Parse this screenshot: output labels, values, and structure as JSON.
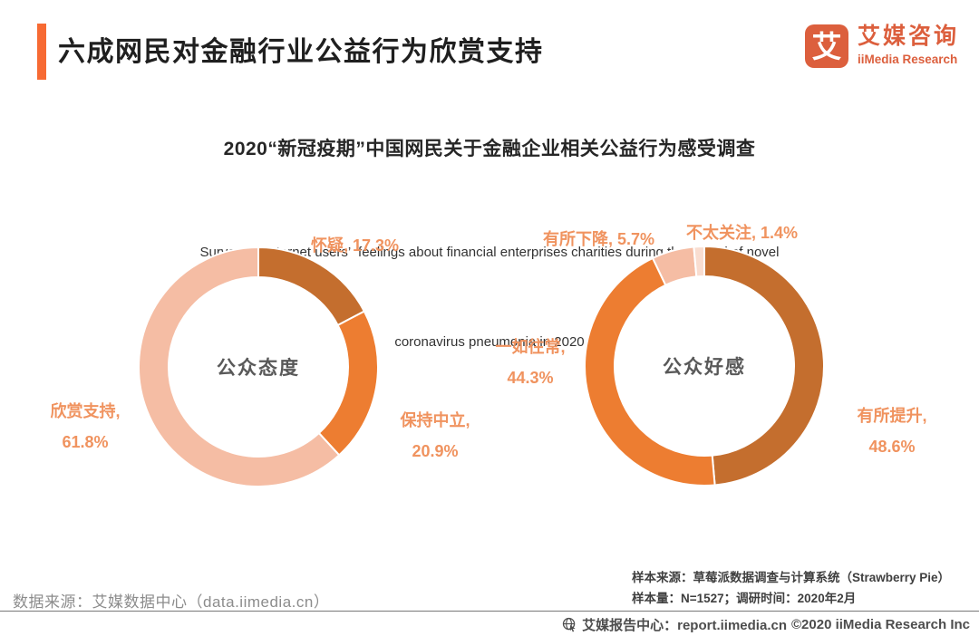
{
  "header": {
    "title": "六成网民对金融行业公益行为欣赏支持",
    "logo": {
      "glyph": "艾",
      "name_cn": "艾媒咨询",
      "name_en": "iiMedia Research"
    }
  },
  "chart_header": {
    "title": "2020“新冠疫期”中国网民关于金融企业相关公益行为感受调查",
    "subtitle_line1": "Survey on Internet users’  feelings about financial enterprises charities during the period of novel",
    "subtitle_line2": "coronavirus pneumonia in 2020"
  },
  "chart_data": [
    {
      "type": "pie",
      "subtype": "donut",
      "center_label": "公众态度",
      "start_angle_deg": 0,
      "direction": "clockwise",
      "slices": [
        {
          "label": "怀疑",
          "value": 17.3,
          "color": "#C46E2E"
        },
        {
          "label": "保持中立",
          "value": 20.9,
          "color": "#ED7D31"
        },
        {
          "label": "欣赏支持",
          "value": 61.8,
          "color": "#F5BDA4"
        }
      ]
    },
    {
      "type": "pie",
      "subtype": "donut",
      "center_label": "公众好感",
      "start_angle_deg": 0,
      "direction": "clockwise",
      "slices": [
        {
          "label": "有所提升",
          "value": 48.6,
          "color": "#C46E2E"
        },
        {
          "label": "一如往常",
          "value": 44.3,
          "color": "#ED7D31"
        },
        {
          "label": "有所下降",
          "value": 5.7,
          "color": "#F5BDA4"
        },
        {
          "label": "不太关注",
          "value": 1.4,
          "color": "#F9DDD0"
        }
      ]
    }
  ],
  "styles": {
    "accent_color": "#F76A33",
    "brand_color": "#DC5F3D",
    "callout_text_color": "#F0935F",
    "center_label_color": "#595959"
  },
  "footnotes": {
    "data_source": "数据来源：艾媒数据中心（data.iimedia.cn）",
    "sample_source": "样本来源：草莓派数据调查与计算系统（Strawberry Pie）",
    "sample_info": "样本量：N=1527；调研时间：2020年2月"
  },
  "footer": {
    "report_center": "艾媒报告中心：report.iimedia.cn",
    "copyright": "©2020  iiMedia Research Inc"
  }
}
